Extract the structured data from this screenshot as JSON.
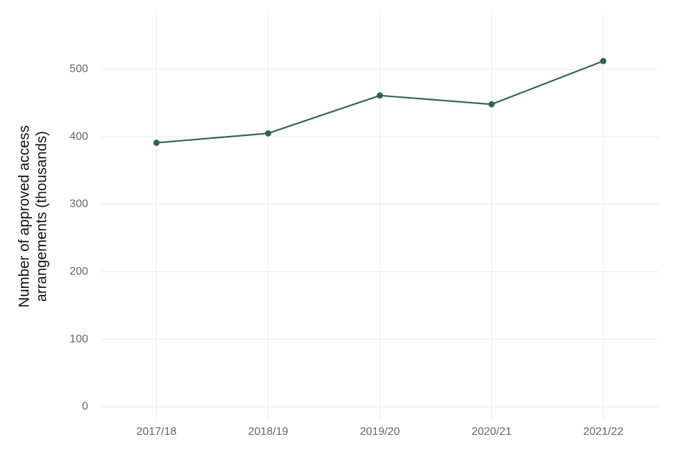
{
  "chart_data": {
    "type": "line",
    "y_label": [
      "Number of approved access",
      "arrangements (thousands)"
    ],
    "categories": [
      "2017/18",
      "2018/19",
      "2019/20",
      "2020/21",
      "2021/22"
    ],
    "series": [
      {
        "color": "#2f6159",
        "values": [
          391,
          405,
          461,
          448,
          512
        ]
      }
    ],
    "ylim": [
      -20,
      587
    ],
    "yticks": [
      0,
      100,
      200,
      300,
      400,
      500
    ],
    "grid": true
  }
}
